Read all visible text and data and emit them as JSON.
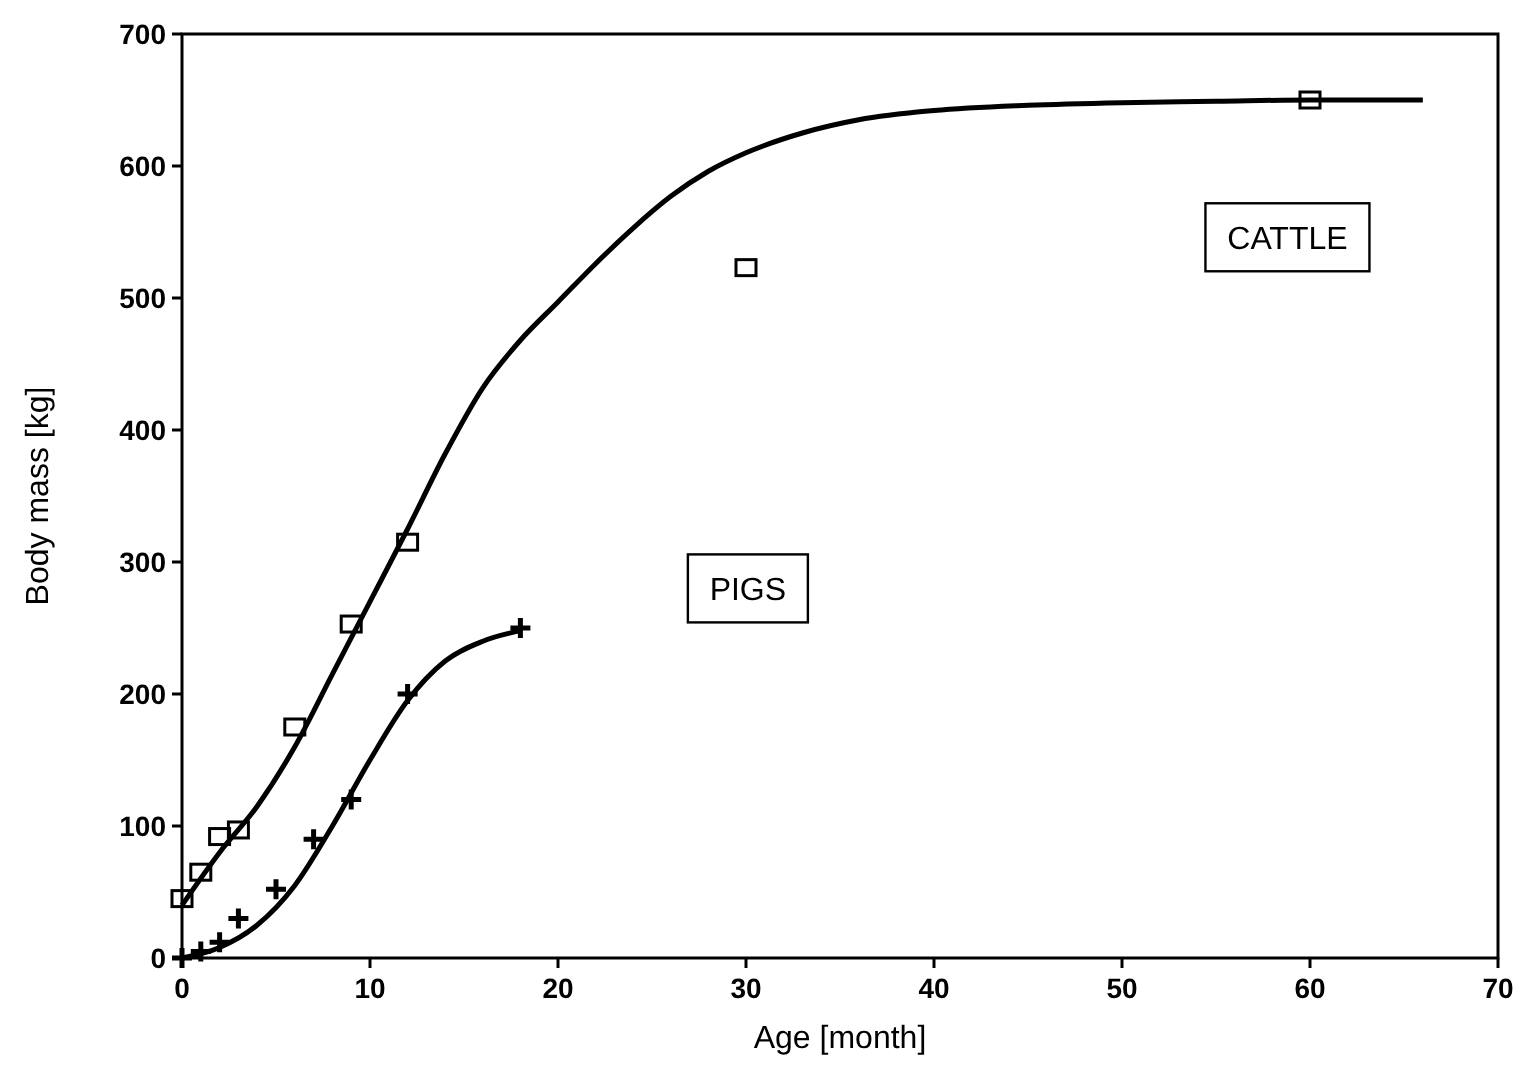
{
  "chart_data": {
    "type": "scatter",
    "xlabel": "Age  [month]",
    "ylabel": "Body mass  [kg]",
    "xlim": [
      0,
      70
    ],
    "ylim": [
      0,
      700
    ],
    "xticks": [
      0,
      10,
      20,
      30,
      40,
      50,
      60,
      70
    ],
    "yticks": [
      0,
      100,
      200,
      300,
      400,
      500,
      600,
      700
    ],
    "grid": false,
    "series": [
      {
        "name": "CATTLE",
        "marker": "square",
        "color": "#000000",
        "x": [
          0,
          1,
          2,
          3,
          6,
          9,
          12,
          30,
          60
        ],
        "values": [
          45,
          65,
          92,
          97,
          175,
          253,
          315,
          523,
          650
        ]
      },
      {
        "type": "line",
        "color": "#000000",
        "marker": "none",
        "line_style": "solid",
        "x": [
          0,
          2,
          4,
          6,
          8,
          10,
          12,
          14,
          16,
          18,
          20,
          22,
          24,
          26,
          28,
          30,
          33,
          36,
          40,
          45,
          50,
          55,
          60,
          66
        ],
        "values": [
          40,
          80,
          115,
          160,
          215,
          270,
          325,
          382,
          432,
          468,
          497,
          526,
          553,
          577,
          596,
          610,
          625,
          635,
          642,
          646,
          648,
          649,
          650,
          650
        ]
      },
      {
        "name": "PIGS",
        "marker": "cross",
        "color": "#000000",
        "x": [
          0,
          1,
          2,
          3,
          5,
          7,
          9,
          12,
          18
        ],
        "values": [
          0,
          5,
          12,
          30,
          52,
          90,
          120,
          200,
          250
        ]
      },
      {
        "type": "line",
        "color": "#000000",
        "marker": "none",
        "line_style": "solid",
        "x": [
          0,
          2,
          4,
          6,
          8,
          10,
          12,
          14,
          16,
          18
        ],
        "values": [
          0,
          8,
          25,
          55,
          100,
          150,
          195,
          225,
          240,
          248
        ]
      }
    ]
  }
}
